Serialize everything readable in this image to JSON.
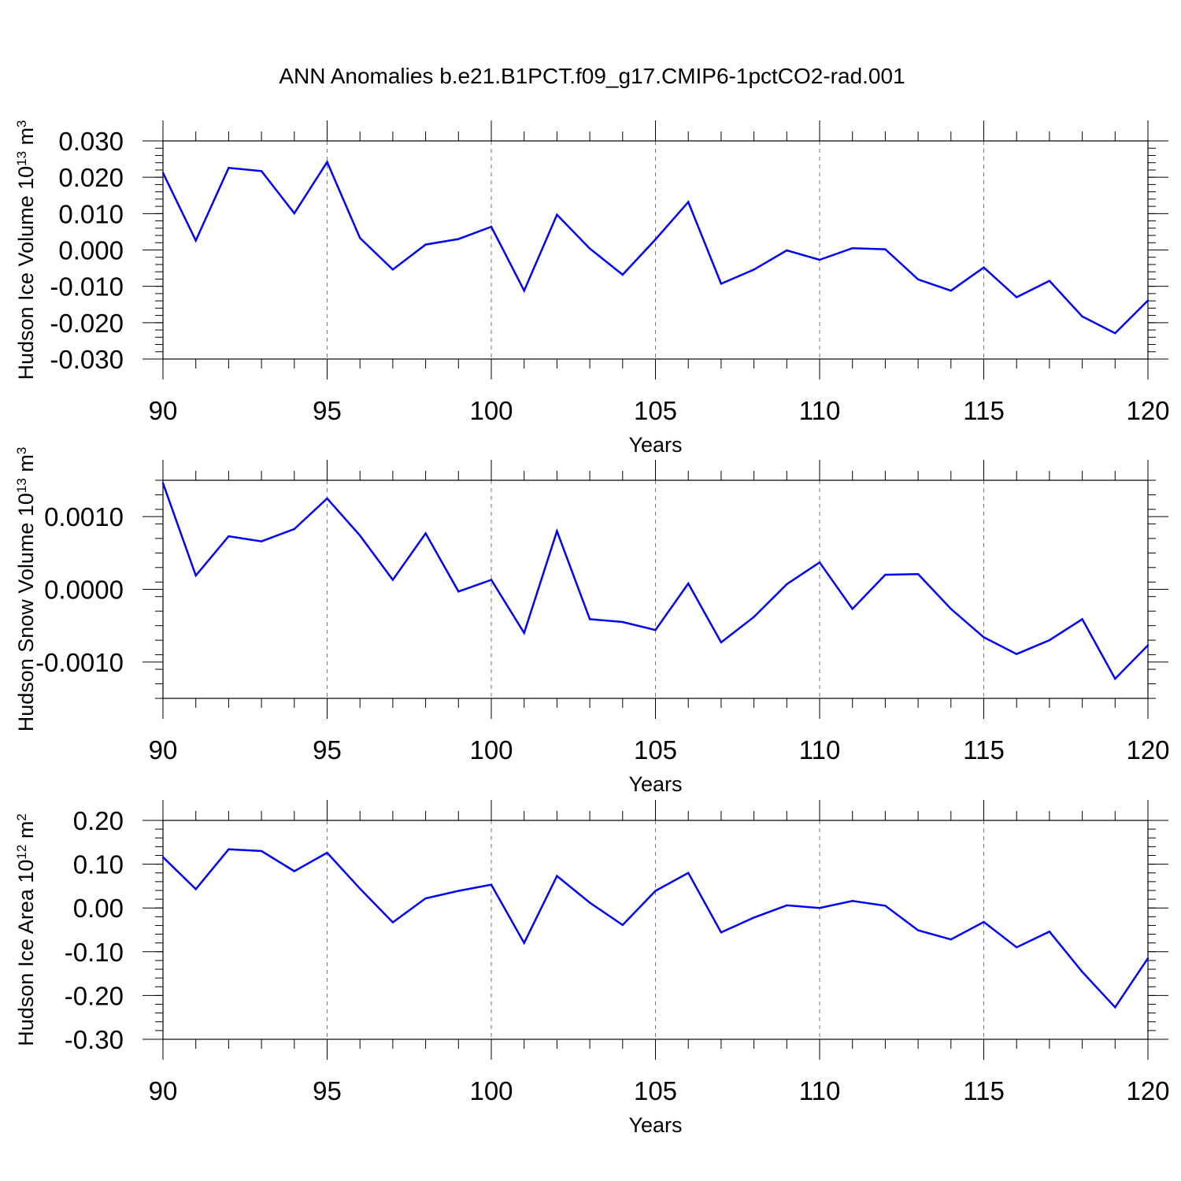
{
  "title": "ANN Anomalies b.e21.B1PCT.f09_g17.CMIP6-1pctCO2-rad.001",
  "line_color": "#0000ff",
  "chart_data": [
    {
      "type": "line",
      "name": "ice_volume",
      "xlabel": "Years",
      "ylabel": {
        "text": "Hudson Ice Volume 10",
        "exp": "13",
        "unit": " m",
        "unit_exp": "3"
      },
      "xlim": [
        90,
        120
      ],
      "ylim": [
        -0.03,
        0.03
      ],
      "x_ticks": [
        "90",
        "95",
        "100",
        "105",
        "110",
        "115",
        "120"
      ],
      "y_ticks": [
        {
          "v": -0.03,
          "label": "-0.030"
        },
        {
          "v": -0.02,
          "label": "-0.020"
        },
        {
          "v": -0.01,
          "label": "-0.010"
        },
        {
          "v": 0.0,
          "label": "0.000"
        },
        {
          "v": 0.01,
          "label": "0.010"
        },
        {
          "v": 0.02,
          "label": "0.020"
        },
        {
          "v": 0.03,
          "label": "0.030"
        }
      ],
      "x": [
        90,
        91,
        92,
        93,
        94,
        95,
        96,
        97,
        98,
        99,
        100,
        101,
        102,
        103,
        104,
        105,
        106,
        107,
        108,
        109,
        110,
        111,
        112,
        113,
        114,
        115,
        116,
        117,
        118,
        119,
        120
      ],
      "values": [
        0.0212,
        0.0026,
        0.0226,
        0.0217,
        0.0101,
        0.0242,
        0.0033,
        -0.0054,
        0.0015,
        0.003,
        0.0064,
        -0.0112,
        0.0097,
        0.0004,
        -0.0068,
        0.0029,
        0.0132,
        -0.0093,
        -0.0054,
        -0.0001,
        -0.0027,
        0.0005,
        0.0002,
        -0.0081,
        -0.0112,
        -0.0048,
        -0.013,
        -0.0085,
        -0.0183,
        -0.0229,
        -0.0139
      ]
    },
    {
      "type": "line",
      "name": "snow_volume",
      "xlabel": "Years",
      "ylabel": {
        "text": "Hudson Snow Volume 10",
        "exp": "13",
        "unit": " m",
        "unit_exp": "3"
      },
      "xlim": [
        90,
        120
      ],
      "ylim": [
        -0.0015,
        0.0015
      ],
      "x_ticks": [
        "90",
        "95",
        "100",
        "105",
        "110",
        "115",
        "120"
      ],
      "y_ticks": [
        {
          "v": -0.001,
          "label": "-0.0010"
        },
        {
          "v": 0.0,
          "label": "0.0000"
        },
        {
          "v": 0.001,
          "label": "0.0010"
        }
      ],
      "x": [
        90,
        91,
        92,
        93,
        94,
        95,
        96,
        97,
        98,
        99,
        100,
        101,
        102,
        103,
        104,
        105,
        106,
        107,
        108,
        109,
        110,
        111,
        112,
        113,
        114,
        115,
        116,
        117,
        118,
        119,
        120
      ],
      "values": [
        0.00146,
        0.00019,
        0.00073,
        0.00066,
        0.00083,
        0.00125,
        0.00074,
        0.00013,
        0.00077,
        -3e-05,
        0.00013,
        -0.0006,
        0.0008,
        -0.00041,
        -0.00045,
        -0.00056,
        8e-05,
        -0.00073,
        -0.00038,
        7e-05,
        0.00037,
        -0.00027,
        0.0002,
        0.00021,
        -0.00027,
        -0.00066,
        -0.00089,
        -0.0007,
        -0.00041,
        -0.00123,
        -0.00077
      ]
    },
    {
      "type": "line",
      "name": "ice_area",
      "xlabel": "Years",
      "ylabel": {
        "text": "Hudson Ice Area 10",
        "exp": "12",
        "unit": " m",
        "unit_exp": "2"
      },
      "xlim": [
        90,
        120
      ],
      "ylim": [
        -0.3,
        0.2
      ],
      "x_ticks": [
        "90",
        "95",
        "100",
        "105",
        "110",
        "115",
        "120"
      ],
      "y_ticks": [
        {
          "v": -0.3,
          "label": "-0.30"
        },
        {
          "v": -0.2,
          "label": "-0.20"
        },
        {
          "v": -0.1,
          "label": "-0.10"
        },
        {
          "v": 0.0,
          "label": "0.00"
        },
        {
          "v": 0.1,
          "label": "0.10"
        },
        {
          "v": 0.2,
          "label": "0.20"
        }
      ],
      "x": [
        90,
        91,
        92,
        93,
        94,
        95,
        96,
        97,
        98,
        99,
        100,
        101,
        102,
        103,
        104,
        105,
        106,
        107,
        108,
        109,
        110,
        111,
        112,
        113,
        114,
        115,
        116,
        117,
        118,
        119,
        120
      ],
      "values": [
        0.116,
        0.043,
        0.134,
        0.13,
        0.084,
        0.126,
        0.044,
        -0.033,
        0.022,
        0.039,
        0.053,
        -0.08,
        0.073,
        0.012,
        -0.039,
        0.039,
        0.08,
        -0.056,
        -0.022,
        0.006,
        0.0,
        0.016,
        0.005,
        -0.051,
        -0.072,
        -0.032,
        -0.09,
        -0.054,
        -0.146,
        -0.227,
        -0.115
      ]
    }
  ]
}
